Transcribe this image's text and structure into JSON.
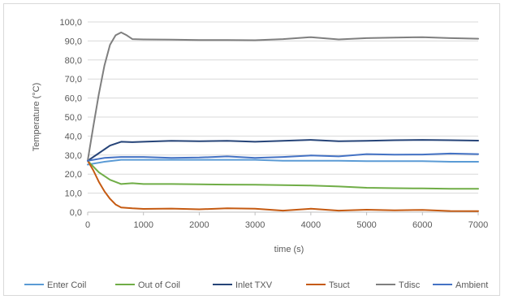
{
  "chart_data": {
    "type": "line",
    "title": "",
    "xlabel": "time (s)",
    "ylabel": "Temperature (°C)",
    "xlim": [
      0,
      7000
    ],
    "ylim": [
      0,
      100
    ],
    "x_ticks": [
      0,
      1000,
      2000,
      3000,
      4000,
      5000,
      6000,
      7000
    ],
    "x_tick_labels": [
      "0",
      "1000",
      "2000",
      "3000",
      "4000",
      "5000",
      "6000",
      "7000"
    ],
    "y_ticks": [
      0,
      10,
      20,
      30,
      40,
      50,
      60,
      70,
      80,
      90,
      100
    ],
    "y_tick_labels": [
      "0,0",
      "10,0",
      "20,0",
      "30,0",
      "40,0",
      "50,0",
      "60,0",
      "70,0",
      "80,0",
      "90,0",
      "100,0"
    ],
    "grid": "horizontal",
    "legend_position": "bottom",
    "series": [
      {
        "name": "Enter Coil",
        "color": "#5b9bd5",
        "x": [
          0,
          300,
          600,
          1000,
          1500,
          2000,
          2500,
          3000,
          3500,
          4000,
          4500,
          5000,
          5500,
          6000,
          6500,
          7000
        ],
        "y": [
          25,
          26.5,
          27.5,
          27.5,
          27.5,
          27.5,
          27.5,
          27.5,
          27,
          27,
          27,
          26.8,
          26.8,
          26.8,
          26.5,
          26.5
        ]
      },
      {
        "name": "Out of Coil",
        "color": "#70ad47",
        "x": [
          0,
          200,
          400,
          600,
          800,
          1000,
          1500,
          2000,
          2500,
          3000,
          3500,
          4000,
          4500,
          5000,
          5500,
          6000,
          6500,
          7000
        ],
        "y": [
          27,
          21,
          17,
          14.8,
          15.2,
          14.8,
          14.8,
          14.6,
          14.5,
          14.4,
          14.2,
          14,
          13.5,
          12.8,
          12.6,
          12.5,
          12.3,
          12.3
        ]
      },
      {
        "name": "Inlet TXV",
        "color": "#264478",
        "x": [
          0,
          200,
          400,
          600,
          800,
          1000,
          1500,
          2000,
          2500,
          3000,
          3500,
          4000,
          4500,
          5000,
          5500,
          6000,
          6500,
          7000
        ],
        "y": [
          27,
          31,
          35,
          37,
          36.8,
          37,
          37.5,
          37.3,
          37.5,
          37,
          37.5,
          38,
          37.3,
          37.5,
          37.8,
          38,
          37.8,
          37.6
        ]
      },
      {
        "name": "Tsuct",
        "color": "#c55a11",
        "x": [
          0,
          100,
          200,
          300,
          400,
          500,
          600,
          800,
          1000,
          1500,
          2000,
          2500,
          3000,
          3500,
          4000,
          4500,
          5000,
          5500,
          6000,
          6500,
          7000
        ],
        "y": [
          27,
          22,
          16,
          11,
          7,
          4,
          2.5,
          2,
          1.7,
          1.9,
          1.5,
          2,
          1.8,
          0.8,
          1.8,
          0.8,
          1.3,
          1,
          1.2,
          0.6,
          0.5
        ]
      },
      {
        "name": "Tdisc",
        "color": "#7f7f7f",
        "x": [
          0,
          100,
          200,
          300,
          400,
          500,
          600,
          700,
          800,
          1000,
          1500,
          2000,
          2500,
          3000,
          3500,
          4000,
          4500,
          5000,
          5500,
          6000,
          6500,
          7000
        ],
        "y": [
          27,
          45,
          62,
          77,
          88,
          93,
          94.5,
          93,
          91,
          90.8,
          90.7,
          90.5,
          90.5,
          90.4,
          91,
          92,
          90.8,
          91.5,
          91.8,
          92,
          91.5,
          91.2
        ]
      },
      {
        "name": "Ambient",
        "color": "#4472c4",
        "x": [
          0,
          300,
          600,
          1000,
          1500,
          2000,
          2500,
          3000,
          3500,
          4000,
          4500,
          5000,
          5500,
          6000,
          6500,
          7000
        ],
        "y": [
          27,
          28.5,
          29,
          29,
          28.5,
          28.7,
          29.3,
          28.5,
          29,
          29.8,
          29.3,
          30.5,
          30.2,
          30.3,
          30.8,
          30.5
        ]
      }
    ]
  }
}
